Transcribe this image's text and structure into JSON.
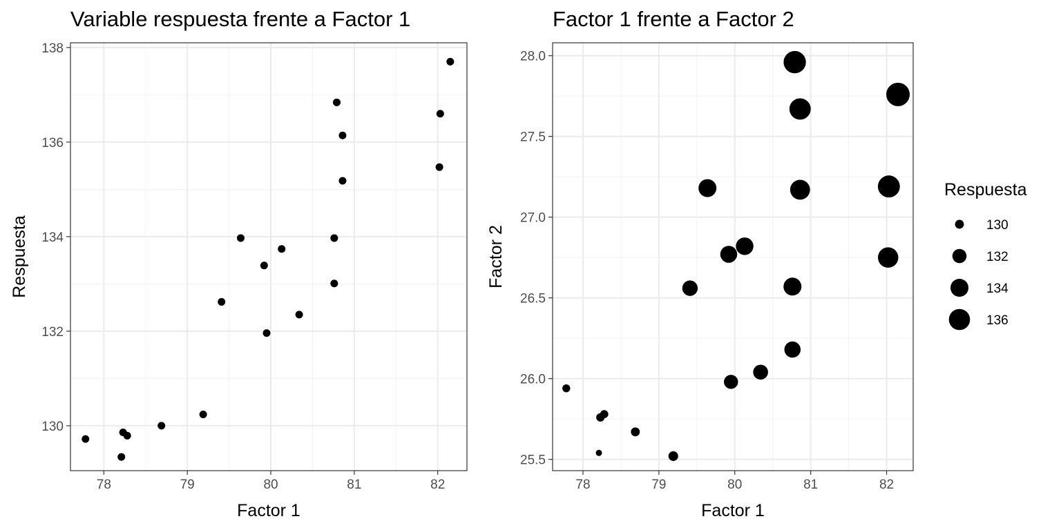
{
  "chart_data": [
    {
      "type": "scatter",
      "title": "Variable respuesta frente a Factor 1",
      "xlabel": "Factor 1",
      "ylabel": "Respuesta",
      "xlim": [
        77.6,
        82.35
      ],
      "ylim": [
        129.05,
        138.1
      ],
      "xticks": [
        78,
        79,
        80,
        81,
        82
      ],
      "yticks": [
        130,
        132,
        134,
        136,
        138
      ],
      "grid": true,
      "points": [
        {
          "x": 77.78,
          "y": 129.72
        },
        {
          "x": 78.21,
          "y": 129.34
        },
        {
          "x": 78.23,
          "y": 129.86
        },
        {
          "x": 78.28,
          "y": 129.79
        },
        {
          "x": 78.69,
          "y": 130.0
        },
        {
          "x": 79.19,
          "y": 130.24
        },
        {
          "x": 79.41,
          "y": 132.62
        },
        {
          "x": 79.64,
          "y": 133.97
        },
        {
          "x": 79.92,
          "y": 133.39
        },
        {
          "x": 79.95,
          "y": 131.96
        },
        {
          "x": 80.13,
          "y": 133.74
        },
        {
          "x": 80.34,
          "y": 132.35
        },
        {
          "x": 80.76,
          "y": 133.97
        },
        {
          "x": 80.76,
          "y": 133.01
        },
        {
          "x": 80.79,
          "y": 136.84
        },
        {
          "x": 80.86,
          "y": 136.14
        },
        {
          "x": 80.86,
          "y": 135.18
        },
        {
          "x": 82.02,
          "y": 135.47
        },
        {
          "x": 82.03,
          "y": 136.6
        },
        {
          "x": 82.15,
          "y": 137.7
        }
      ]
    },
    {
      "type": "scatter",
      "title": "Factor 1 frente a Factor 2",
      "xlabel": "Factor 1",
      "ylabel": "Factor 2",
      "xlim": [
        77.6,
        82.35
      ],
      "ylim": [
        25.43,
        28.08
      ],
      "xticks": [
        78,
        79,
        80,
        81,
        82
      ],
      "yticks": [
        "25.5",
        "26.0",
        "26.5",
        "27.0",
        "27.5",
        "28.0"
      ],
      "grid": true,
      "size_by": "Respuesta",
      "legend": {
        "title": "Respuesta",
        "placement": "right",
        "entries": [
          130,
          132,
          134,
          136
        ]
      },
      "points": [
        {
          "x": 77.78,
          "y": 25.94,
          "size": 129.72
        },
        {
          "x": 78.21,
          "y": 25.54,
          "size": 129.34
        },
        {
          "x": 78.23,
          "y": 25.76,
          "size": 129.86
        },
        {
          "x": 78.28,
          "y": 25.78,
          "size": 129.79
        },
        {
          "x": 78.69,
          "y": 25.67,
          "size": 130.0
        },
        {
          "x": 79.19,
          "y": 25.52,
          "size": 130.24
        },
        {
          "x": 79.41,
          "y": 26.56,
          "size": 132.62
        },
        {
          "x": 79.64,
          "y": 27.18,
          "size": 133.97
        },
        {
          "x": 79.92,
          "y": 26.77,
          "size": 133.39
        },
        {
          "x": 79.95,
          "y": 25.98,
          "size": 131.96
        },
        {
          "x": 80.13,
          "y": 26.82,
          "size": 133.74
        },
        {
          "x": 80.34,
          "y": 26.04,
          "size": 132.35
        },
        {
          "x": 80.76,
          "y": 26.57,
          "size": 133.97
        },
        {
          "x": 80.76,
          "y": 26.18,
          "size": 133.01
        },
        {
          "x": 80.79,
          "y": 27.96,
          "size": 136.84
        },
        {
          "x": 80.86,
          "y": 27.67,
          "size": 136.14
        },
        {
          "x": 80.86,
          "y": 27.17,
          "size": 135.18
        },
        {
          "x": 82.02,
          "y": 26.75,
          "size": 135.47
        },
        {
          "x": 82.03,
          "y": 27.19,
          "size": 136.6
        },
        {
          "x": 82.15,
          "y": 27.76,
          "size": 137.7
        }
      ]
    }
  ]
}
